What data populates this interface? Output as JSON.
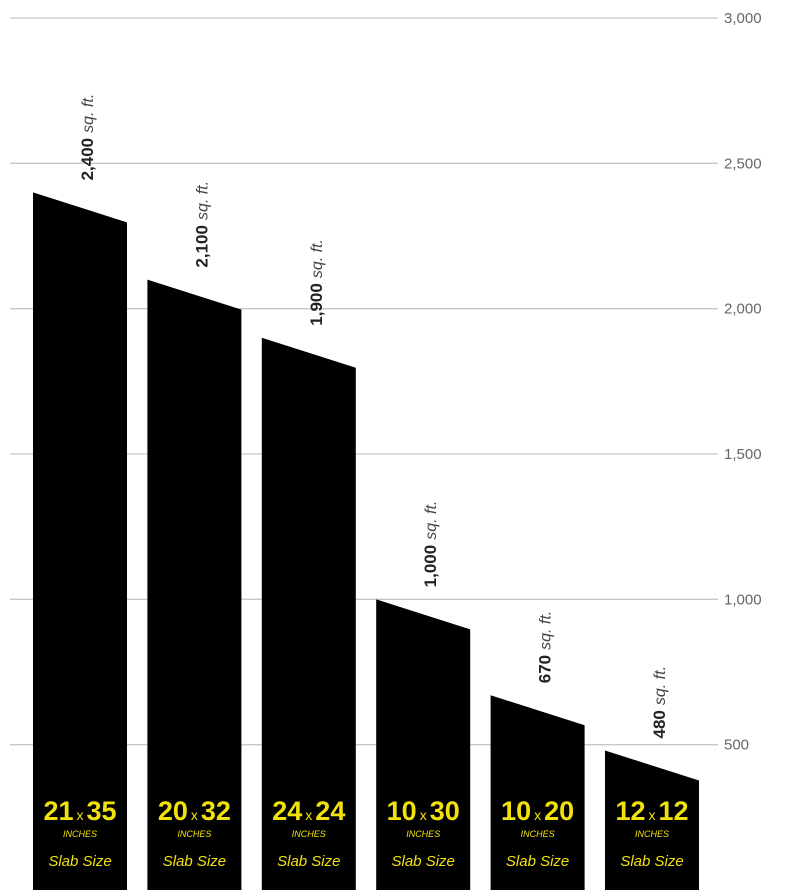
{
  "chart_data": {
    "type": "bar",
    "categories": [
      "21 x 35",
      "20 x 32",
      "24 x 24",
      "10 x 30",
      "10 x 20",
      "12 x 12"
    ],
    "dims": [
      [
        "21",
        "35"
      ],
      [
        "20",
        "32"
      ],
      [
        "24",
        "24"
      ],
      [
        "10",
        "30"
      ],
      [
        "10",
        "20"
      ],
      [
        "12",
        "12"
      ]
    ],
    "dim_sep": "x",
    "dim_unit": "INCHES",
    "category_caption": "Slab Size",
    "values": [
      2400,
      2100,
      1900,
      1000,
      670,
      480
    ],
    "value_labels": [
      "2,400",
      "2,100",
      "1,900",
      "1,000",
      "670",
      "480"
    ],
    "value_unit": "sq. ft.",
    "ylim": [
      0,
      3000
    ],
    "yticks": [
      500,
      1000,
      1500,
      2000,
      2500,
      3000
    ],
    "ytick_labels": [
      "500",
      "1,000",
      "1,500",
      "2,000",
      "2,500",
      "3,000"
    ],
    "grid": true,
    "title": "",
    "xlabel": "",
    "ylabel": "",
    "colors": {
      "bar": "#000000",
      "dimension_text": "#f2e20c",
      "grid": "#c8c8c8",
      "tick_text": "#666666"
    }
  }
}
